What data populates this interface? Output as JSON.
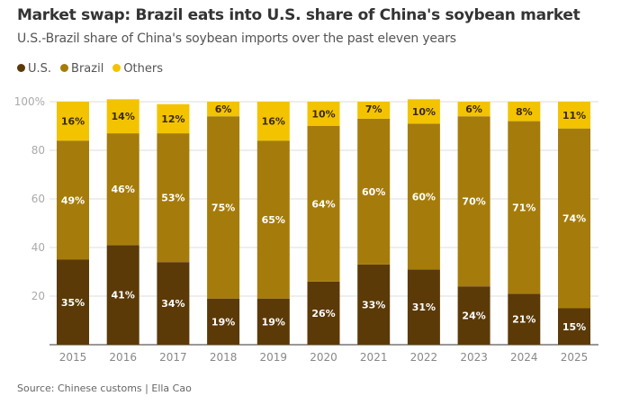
{
  "title": "Market swap: Brazil eats into U.S. share of China's soybean market",
  "subtitle": "U.S.-Brazil share of China's soybean imports over the past eleven years",
  "source": "Source: Chinese customs | Ella Cao",
  "chart_data": {
    "type": "bar",
    "stacked": true,
    "categories": [
      "2015",
      "2016",
      "2017",
      "2018",
      "2019",
      "2020",
      "2021",
      "2022",
      "2023",
      "2024",
      "2025"
    ],
    "series": [
      {
        "name": "U.S.",
        "color": "#5b3a08",
        "values": [
          35,
          41,
          34,
          19,
          19,
          26,
          33,
          31,
          24,
          21,
          15
        ]
      },
      {
        "name": "Brazil",
        "color": "#a57c0b",
        "values": [
          49,
          46,
          53,
          75,
          65,
          64,
          60,
          60,
          70,
          71,
          74
        ]
      },
      {
        "name": "Others",
        "color": "#f3c300",
        "values": [
          16,
          14,
          12,
          6,
          16,
          10,
          7,
          10,
          6,
          8,
          11
        ]
      }
    ],
    "yticks": [
      "",
      "20",
      "40",
      "60",
      "80",
      "100%"
    ],
    "ylim": [
      0,
      100
    ],
    "grid": true,
    "legend": "top-left"
  }
}
